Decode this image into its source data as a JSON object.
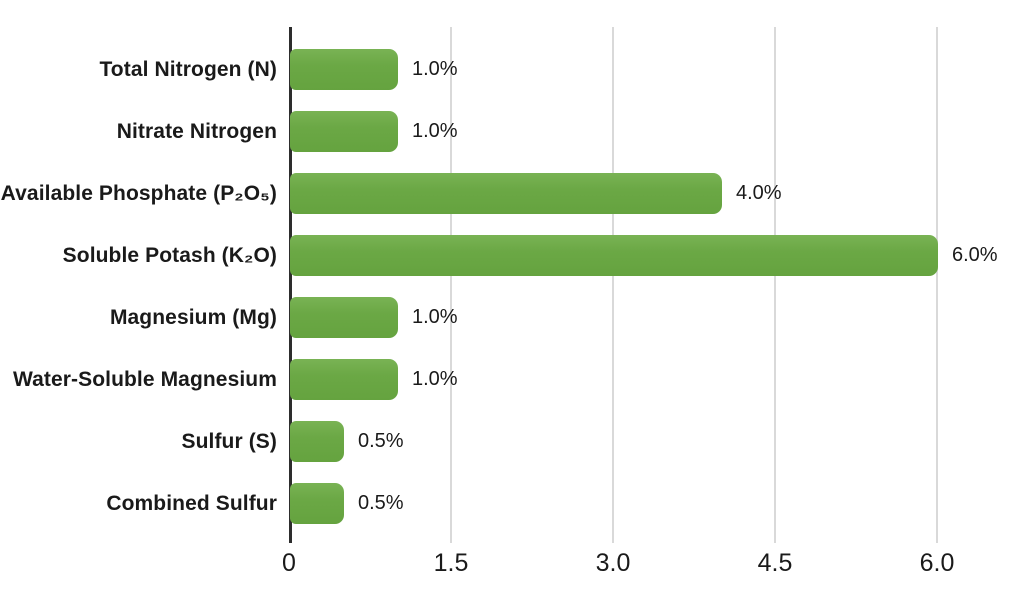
{
  "chart_data": {
    "type": "bar",
    "orientation": "horizontal",
    "title": "",
    "xlabel": "",
    "ylabel": "",
    "categories": [
      "Total Nitrogen (N)",
      "Nitrate Nitrogen",
      "Available Phosphate (P₂O₅)",
      "Soluble Potash (K₂O)",
      "Magnesium (Mg)",
      "Water-Soluble Magnesium",
      "Sulfur (S)",
      "Combined Sulfur"
    ],
    "values": [
      1.0,
      1.0,
      4.0,
      6.0,
      1.0,
      1.0,
      0.5,
      0.5
    ],
    "value_labels": [
      "1.0%",
      "1.0%",
      "4.0%",
      "6.0%",
      "1.0%",
      "1.0%",
      "0.5%",
      "0.5%"
    ],
    "x_ticks": [
      0,
      1.5,
      3.0,
      4.5,
      6.0
    ],
    "x_tick_labels": [
      "0",
      "1.5",
      "3.0",
      "4.5",
      "6.0"
    ],
    "xlim": [
      0,
      6.8
    ],
    "grid": "vertical-gridlines-only",
    "legend": "none",
    "colors": {
      "bar": "#6ba845",
      "bar_gradient_top": "#79b354",
      "bar_gradient_bottom": "#65a33f",
      "axis_line": "#2d2d2d",
      "gridline": "#d9d9d9",
      "text": "#1a1a1a"
    }
  }
}
